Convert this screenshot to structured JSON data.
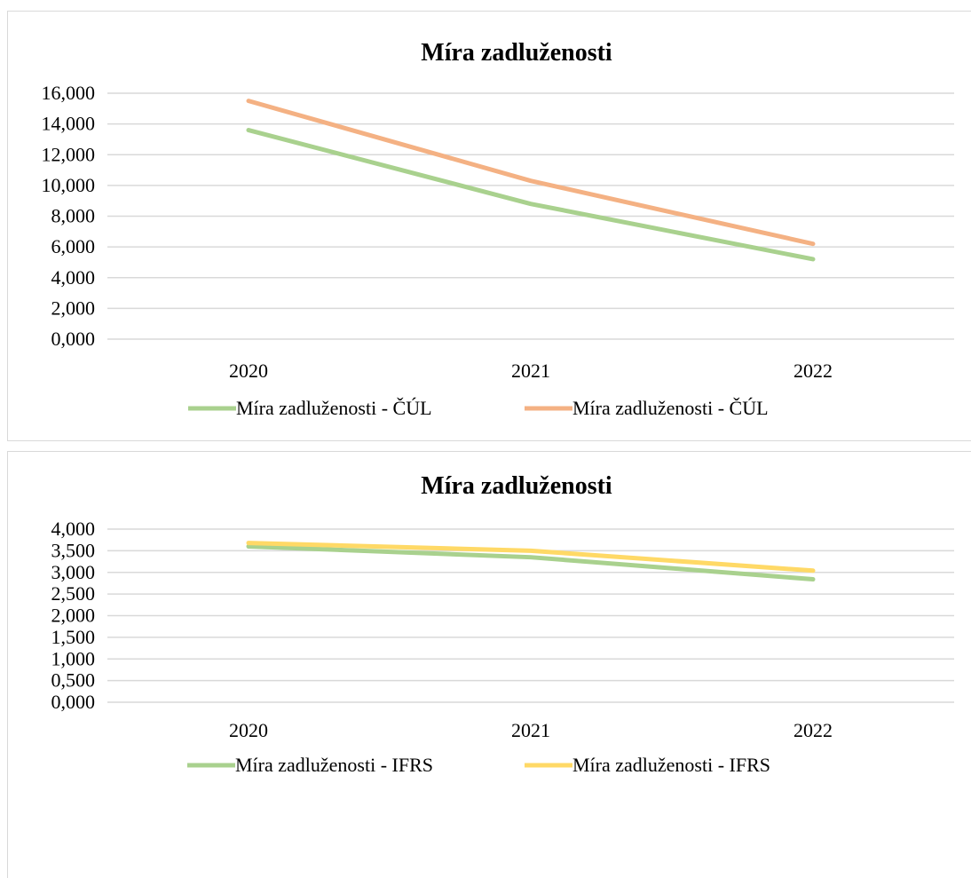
{
  "chart_data": [
    {
      "type": "line",
      "title": "Míra zadluženosti",
      "categories": [
        "2020",
        "2021",
        "2022"
      ],
      "ylim": [
        0,
        16000
      ],
      "yticks": [
        "0,000",
        "2,000",
        "4,000",
        "6,000",
        "8,000",
        "10,000",
        "12,000",
        "14,000",
        "16,000"
      ],
      "grid": true,
      "legend_position": "bottom",
      "series": [
        {
          "name": "Míra zadluženosti - ČÚL",
          "color": "#a9d18e",
          "values": [
            13600,
            8800,
            5200
          ]
        },
        {
          "name": "Míra zadluženosti - ČÚL",
          "color": "#f4b183",
          "values": [
            15500,
            10300,
            6200
          ]
        }
      ]
    },
    {
      "type": "line",
      "title": "Míra zadluženosti",
      "categories": [
        "2020",
        "2021",
        "2022"
      ],
      "ylim": [
        0,
        4000
      ],
      "yticks": [
        "0,000",
        "0,500",
        "1,000",
        "1,500",
        "2,000",
        "2,500",
        "3,000",
        "3,500",
        "4,000"
      ],
      "grid": true,
      "legend_position": "bottom",
      "series": [
        {
          "name": "Míra zadluženosti - IFRS",
          "color": "#a9d18e",
          "values": [
            3600,
            3350,
            2840
          ]
        },
        {
          "name": "Míra zadluženosti - IFRS",
          "color": "#ffd966",
          "values": [
            3680,
            3500,
            3040
          ]
        }
      ]
    }
  ]
}
